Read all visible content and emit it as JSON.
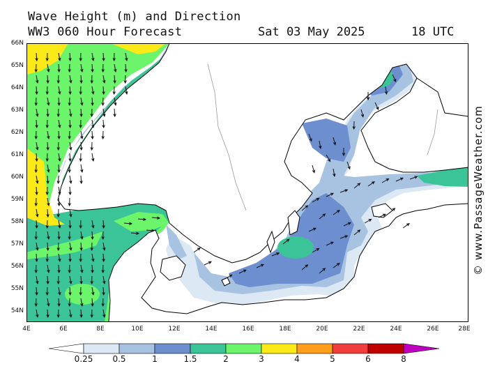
{
  "header": {
    "title_line1": "Wave Height (m) and Direction",
    "title_line2": "WW3 060 Hour Forecast",
    "date": "Sat 03 May 2025",
    "time": "18 UTC"
  },
  "credit": "© www.PassageWeather.com",
  "map": {
    "lat_labels": [
      "66N",
      "65N",
      "64N",
      "63N",
      "62N",
      "61N",
      "60N",
      "59N",
      "58N",
      "57N",
      "56N",
      "55N",
      "54N"
    ],
    "lon_labels": [
      "4E",
      "6E",
      "8E",
      "10E",
      "12E",
      "14E",
      "16E",
      "18E",
      "20E",
      "22E",
      "24E",
      "26E",
      "28E"
    ],
    "lat_range": [
      53.7,
      66
    ],
    "lon_range": [
      4,
      28
    ],
    "colors": {
      "land": "#ffffff",
      "sea_calm": "#ffffff",
      "c_025": "#dde8f5",
      "c_05": "#a8c2e2",
      "c_1": "#6d8fd0",
      "c_15": "#3bc497",
      "c_2": "#6cf56a",
      "c_3": "#fce918",
      "c_4": "#ff9e1a"
    }
  },
  "colorbar": {
    "labels": [
      "0.25",
      "0.5",
      "1",
      "1.5",
      "2",
      "3",
      "4",
      "5",
      "6",
      "8"
    ],
    "colors": [
      "#ffffff",
      "#dde8f5",
      "#a8c2e2",
      "#6d8fd0",
      "#3bc497",
      "#6cf56a",
      "#fce918",
      "#ff9e1a",
      "#f03e3e",
      "#c00000",
      "#c000c0"
    ]
  }
}
